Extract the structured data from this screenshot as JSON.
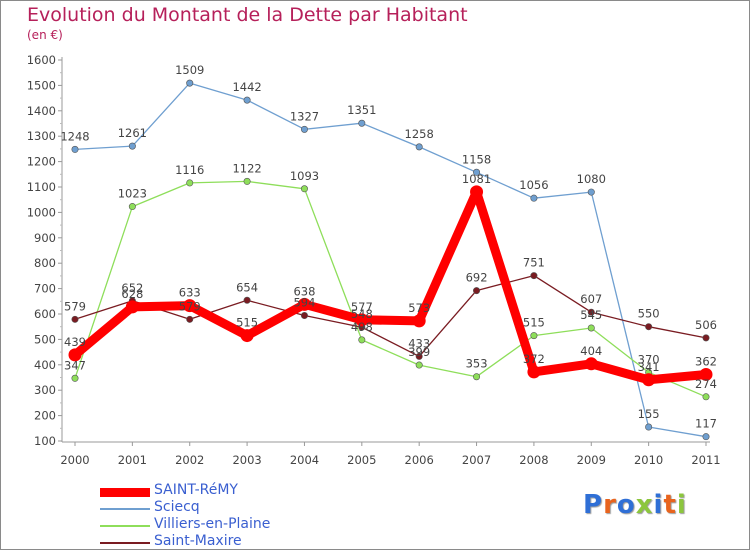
{
  "title": "Evolution du Montant de la Dette par Habitant",
  "subtitle": "(en €)",
  "logo": {
    "text": "Proxiti",
    "colors": [
      "#2f6fd6",
      "#e8641e",
      "#2f6fd6",
      "#8cc63e",
      "#2f6fd6",
      "#e8641e",
      "#8cc63e"
    ]
  },
  "chart_data": {
    "type": "line",
    "title": "Evolution du Montant de la Dette par Habitant",
    "subtitle": "(en €)",
    "x": [
      "2000",
      "2001",
      "2002",
      "2003",
      "2004",
      "2005",
      "2006",
      "2007",
      "2008",
      "2009",
      "2010",
      "2011"
    ],
    "ylim": [
      100,
      1600
    ],
    "yticks": [
      100,
      200,
      300,
      400,
      500,
      600,
      700,
      800,
      900,
      1000,
      1100,
      1200,
      1300,
      1400,
      1500,
      1600
    ],
    "grid": false,
    "legend": "bottom-left",
    "series": [
      {
        "name": "SAINT-RéMY",
        "color": "#ff0000",
        "values": [
          439,
          628,
          633,
          515,
          638,
          577,
          573,
          1081,
          372,
          404,
          341,
          362
        ]
      },
      {
        "name": "Sciecq",
        "color": "#6f9fd0",
        "values": [
          1248,
          1261,
          1509,
          1442,
          1327,
          1351,
          1258,
          1158,
          1056,
          1080,
          155,
          117
        ]
      },
      {
        "name": "Villiers-en-Plaine",
        "color": "#8ede5a",
        "values": [
          347,
          1023,
          1116,
          1122,
          1093,
          498,
          399,
          353,
          515,
          545,
          370,
          274
        ]
      },
      {
        "name": "Saint-Maxire",
        "color": "#7a1c22",
        "values": [
          579,
          652,
          579,
          654,
          594,
          548,
          433,
          692,
          751,
          607,
          550,
          506
        ]
      }
    ]
  }
}
